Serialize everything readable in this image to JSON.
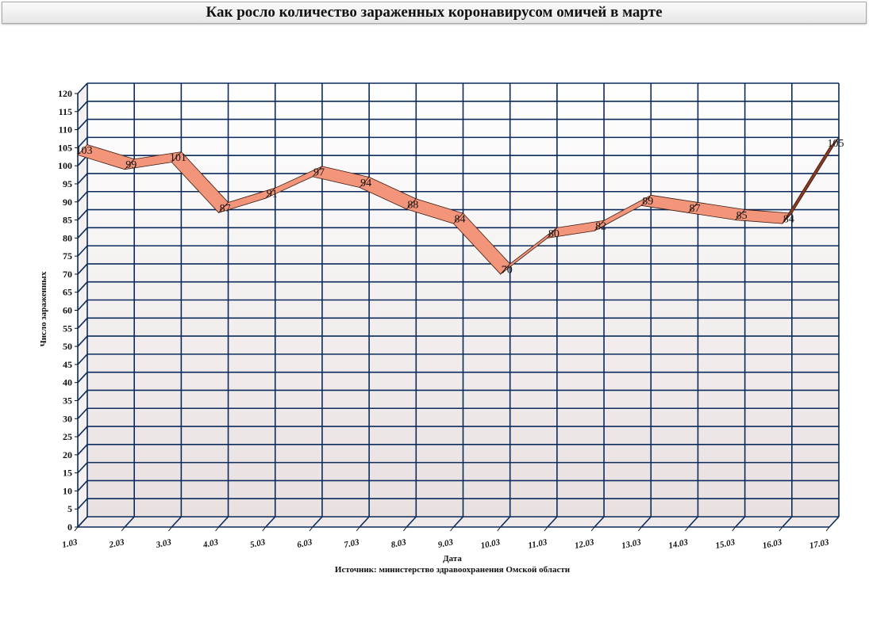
{
  "chart_data": {
    "type": "line",
    "title": "Как росло количество зараженных коронавирусом омичей в марте",
    "xlabel": "Дата",
    "ylabel": "Число зараженных",
    "source": "Источник: министерство здравоохранения Омской области",
    "categories": [
      "1.03",
      "2.03",
      "3.03",
      "4.03",
      "5.03",
      "6.03",
      "7.03",
      "8.03",
      "9.03",
      "10.03",
      "11.03",
      "12.03",
      "13.03",
      "14.03",
      "15.03",
      "16.03",
      "17.03"
    ],
    "series": [
      {
        "values": [
          103,
          99,
          101,
          87,
          91,
          97,
          94,
          88,
          84,
          70,
          80,
          82,
          89,
          87,
          85,
          84,
          105
        ]
      }
    ],
    "ylim": [
      0,
      120
    ],
    "ytick_step": 5,
    "grid": true,
    "three_d": true,
    "colors": {
      "ribbon_top": "#f2957a",
      "ribbon_side": "#8b3a22",
      "ribbon_stroke": "#3a1a10",
      "grid": "#0a2b5c",
      "wall_top": "#ffffff",
      "wall_bottom": "#e9e0e0"
    }
  }
}
